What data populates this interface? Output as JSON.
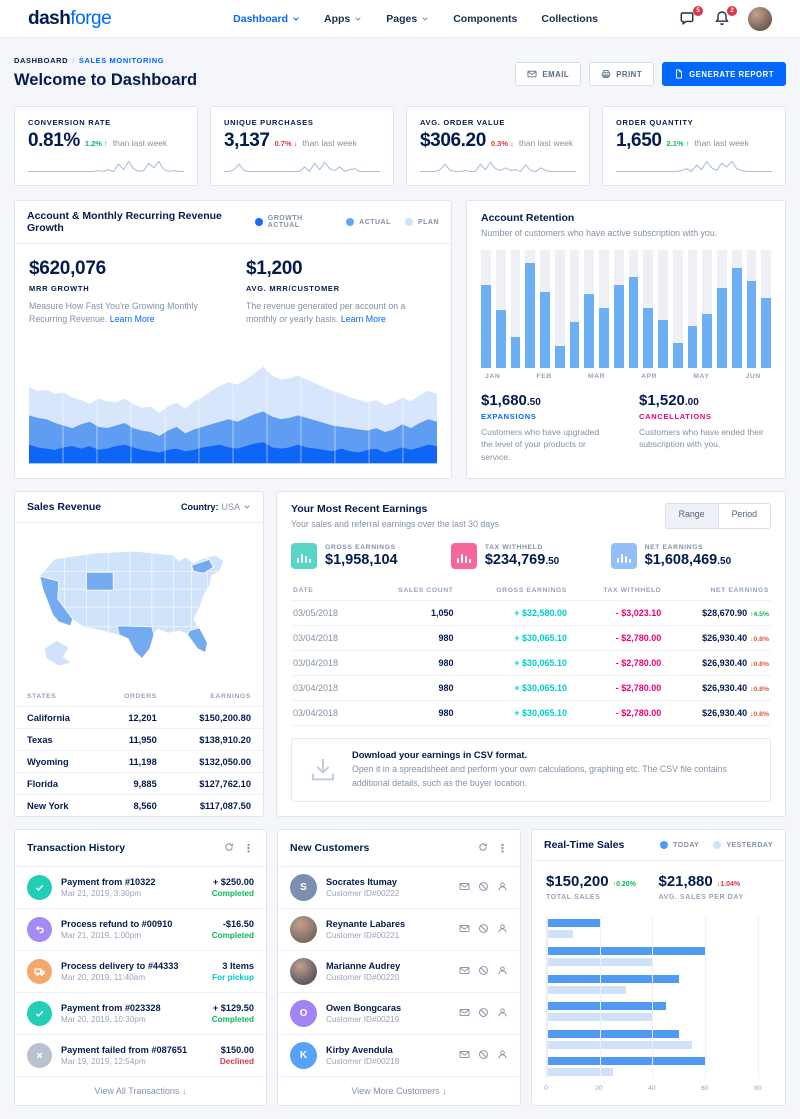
{
  "navbar": {
    "logo_bold": "dash",
    "logo_light": "forge",
    "items": [
      {
        "label": "Dashboard",
        "chevron": true,
        "active": true
      },
      {
        "label": "Apps",
        "chevron": true,
        "active": false
      },
      {
        "label": "Pages",
        "chevron": true,
        "active": false
      },
      {
        "label": "Components",
        "chevron": false,
        "active": false
      },
      {
        "label": "Collections",
        "chevron": false,
        "active": false
      }
    ],
    "chat_badge": "5",
    "bell_badge": "2"
  },
  "header": {
    "breadcrumb_1": "DASHBOARD",
    "breadcrumb_2": "SALES MONITORING",
    "title": "Welcome to Dashboard",
    "email_label": "EMAIL",
    "print_label": "PRINT",
    "report_label": "GENERATE REPORT"
  },
  "kpis": [
    {
      "label": "CONVERSION RATE",
      "value": "0.81%",
      "delta": "1.2%",
      "dir": "up",
      "suffix": "than last week",
      "spark": [
        17,
        17,
        17,
        17,
        17,
        17,
        17,
        17,
        17,
        17,
        17,
        17,
        17,
        17,
        16,
        17,
        15,
        17,
        9,
        15,
        6,
        14,
        17,
        16,
        8,
        13,
        6,
        15,
        17,
        16,
        17,
        17
      ]
    },
    {
      "label": "UNIQUE PURCHASES",
      "value": "3,137",
      "delta": "0.7%",
      "dir": "down",
      "suffix": "than last week",
      "spark": [
        17,
        17,
        15,
        9,
        16,
        17,
        17,
        17,
        17,
        17,
        17,
        17,
        17,
        17,
        17,
        17,
        12,
        17,
        8,
        15,
        7,
        14,
        16,
        12,
        17,
        15,
        14,
        17,
        17,
        17,
        17,
        17
      ]
    },
    {
      "label": "AVG. ORDER VALUE",
      "value": "$306.20",
      "delta": "0.3%",
      "dir": "down",
      "suffix": "than last week",
      "spark": [
        17,
        17,
        17,
        17,
        15,
        9,
        16,
        17,
        17,
        16,
        17,
        17,
        9,
        15,
        7,
        14,
        16,
        13,
        16,
        15,
        17,
        10,
        16,
        17,
        13,
        16,
        17,
        17,
        17,
        17,
        17,
        17
      ]
    },
    {
      "label": "ORDER QUANTITY",
      "value": "1,650",
      "delta": "2.1%",
      "dir": "up",
      "suffix": "than last week",
      "spark": [
        17,
        17,
        17,
        17,
        17,
        17,
        17,
        17,
        17,
        17,
        17,
        17,
        17,
        16,
        14,
        17,
        10,
        15,
        6,
        13,
        16,
        8,
        12,
        6,
        14,
        16,
        17,
        17,
        17,
        17,
        17,
        17
      ]
    }
  ],
  "mrr": {
    "title": "Account & Monthly Recurring Revenue Growth",
    "legend": [
      {
        "label": "GROWTH ACTUAL",
        "color": "#1a6ef5"
      },
      {
        "label": "ACTUAL",
        "color": "#66a4f4"
      },
      {
        "label": "PLAN",
        "color": "#cfe2fa"
      }
    ],
    "stats": [
      {
        "value": "$620,076",
        "label": "MRR GROWTH",
        "desc": "Measure How Fast You're Growing Monthly Recurring Revenue.",
        "link": "Learn More"
      },
      {
        "value": "$1,200",
        "label": "AVG. MRR/CUSTOMER",
        "desc": "The revenue generated per account on a monthly or yearly basis.",
        "link": "Learn More"
      }
    ],
    "series": {
      "plan": [
        60,
        57,
        58,
        55,
        56,
        52,
        50,
        47,
        51,
        49,
        48,
        51,
        47,
        44,
        45,
        40,
        45,
        48,
        43,
        49,
        52,
        57,
        61,
        64,
        62,
        66,
        71,
        76,
        69,
        66,
        67,
        69,
        66,
        63,
        60,
        57,
        55,
        52,
        50,
        48,
        50,
        46,
        48,
        52,
        49,
        54,
        57,
        55
      ],
      "actual": [
        38,
        36,
        35,
        32,
        30,
        28,
        31,
        33,
        29,
        28,
        30,
        32,
        28,
        26,
        25,
        22,
        26,
        29,
        24,
        27,
        29,
        31,
        33,
        35,
        33,
        36,
        39,
        41,
        37,
        35,
        36,
        38,
        36,
        34,
        32,
        30,
        29,
        28,
        27,
        26,
        28,
        25,
        27,
        31,
        28,
        32,
        35,
        33
      ],
      "growth": [
        15,
        13,
        12,
        11,
        13,
        14,
        12,
        14,
        11,
        12,
        14,
        15,
        13,
        11,
        10,
        9,
        11,
        12,
        10,
        11,
        13,
        14,
        15,
        13,
        12,
        14,
        16,
        17,
        13,
        12,
        13,
        15,
        13,
        12,
        11,
        10,
        12,
        10,
        9,
        11,
        12,
        9,
        11,
        13,
        11,
        13,
        15,
        14
      ]
    },
    "colors": {
      "plan": "#d7e6fb",
      "actual": "#5f9df3",
      "growth": "#0d66f5"
    }
  },
  "retention": {
    "title": "Account Retention",
    "subtitle": "Number of customers who have active subscription with you.",
    "bars": [
      70,
      49,
      26,
      89,
      64,
      19,
      39,
      63,
      51,
      70,
      77,
      51,
      41,
      21,
      36,
      46,
      68,
      85,
      74,
      59
    ],
    "months": [
      "JAN",
      "FEB",
      "MAR",
      "APR",
      "MAY",
      "JUN"
    ],
    "stats": [
      {
        "value": "$1,680",
        "cents": ".50",
        "label": "EXPANSIONS",
        "cls": "exp",
        "desc": "Customers who have upgraded the level of your products or service."
      },
      {
        "value": "$1,520",
        "cents": ".00",
        "label": "CANCELLATIONS",
        "cls": "can",
        "desc": "Customers who have ended their subscription with you."
      }
    ]
  },
  "sales_revenue": {
    "title": "Sales Revenue",
    "country_label": "Country:",
    "country_value": "USA",
    "headers": [
      "STATES",
      "ORDERS",
      "EARNINGS"
    ],
    "rows": [
      [
        "California",
        "12,201",
        "$150,200.80"
      ],
      [
        "Texas",
        "11,950",
        "$138,910.20"
      ],
      [
        "Wyoming",
        "11,198",
        "$132,050.00"
      ],
      [
        "Florida",
        "9,885",
        "$127,762.10"
      ],
      [
        "New York",
        "8,560",
        "$117,087.50"
      ]
    ]
  },
  "earnings": {
    "title": "Your Most Recent Earnings",
    "subtitle": "Your sales and referral earnings over the last 30 days",
    "toggle": [
      "Range",
      "Period"
    ],
    "cards": [
      {
        "label": "GROSS EARNINGS",
        "value": "$1,958,104",
        "cents": "",
        "color": "#59d4c6"
      },
      {
        "label": "TAX WITHHELD",
        "value": "$234,769",
        "cents": ".50",
        "color": "#f4679f"
      },
      {
        "label": "NET EARNINGS",
        "value": "$1,608,469",
        "cents": ".50",
        "color": "#94bef8"
      }
    ],
    "headers": [
      "DATE",
      "SALES COUNT",
      "GROSS EARNINGS",
      "TAX WITHHELD",
      "NET EARNINGS"
    ],
    "rows": [
      {
        "date": "03/05/2018",
        "count": "1,050",
        "gross": "+ $32,580.00",
        "tax": "- $3,023.10",
        "net": "$28,670.90",
        "delta": "4.5%",
        "dir": "up"
      },
      {
        "date": "03/04/2018",
        "count": "980",
        "gross": "+ $30,065.10",
        "tax": "- $2,780.00",
        "net": "$26,930.40",
        "delta": "0.8%",
        "dir": "down"
      },
      {
        "date": "03/04/2018",
        "count": "980",
        "gross": "+ $30,065.10",
        "tax": "- $2,780.00",
        "net": "$26,930.40",
        "delta": "0.8%",
        "dir": "down"
      },
      {
        "date": "03/04/2018",
        "count": "980",
        "gross": "+ $30,065.10",
        "tax": "- $2,780.00",
        "net": "$26,930.40",
        "delta": "0.8%",
        "dir": "down"
      },
      {
        "date": "03/04/2018",
        "count": "980",
        "gross": "+ $30,065.10",
        "tax": "- $2,780.00",
        "net": "$26,930.40",
        "delta": "0.8%",
        "dir": "down"
      }
    ],
    "csv_title": "Download your earnings in CSV format.",
    "csv_desc": "Open it in a spreadsheet and perform your own calculations, graphing etc. The CSV file contains additional details, such as the buyer location."
  },
  "transactions": {
    "title": "Transaction History",
    "rows": [
      {
        "icon": "check",
        "color": "#22ceb6",
        "title": "Payment from #10322",
        "date": "Mar 21, 2019, 3:30pm",
        "amount": "+ $250.00",
        "status": "Completed",
        "status_color": "#10b759"
      },
      {
        "icon": "undo",
        "color": "#a58bf2",
        "title": "Process refund to #00910",
        "date": "Mar 21, 2019, 1:00pm",
        "amount": "-$16.50",
        "status": "Completed",
        "status_color": "#10b759"
      },
      {
        "icon": "truck",
        "color": "#f3a86e",
        "title": "Process delivery to #44333",
        "date": "Mar 20, 2019, 11:40am",
        "amount": "3 Items",
        "status": "For pickup",
        "status_color": "#00c9cc"
      },
      {
        "icon": "check",
        "color": "#22ceb6",
        "title": "Payment from #023328",
        "date": "Mar 20, 2019, 10:30pm",
        "amount": "+ $129.50",
        "status": "Completed",
        "status_color": "#10b759"
      },
      {
        "icon": "close",
        "color": "#b9c2cf",
        "title": "Payment failed from #087651",
        "date": "Mar 19, 2019, 12:54pm",
        "amount": "$150.00",
        "status": "Declined",
        "status_color": "#dc3545"
      }
    ],
    "footer": "View All Transactions ↓"
  },
  "customers": {
    "title": "New Customers",
    "rows": [
      {
        "name": "Socrates Itumay",
        "id": "Customer ID#00222",
        "avatar": "initial",
        "text": "S",
        "color": "#7d8fb0"
      },
      {
        "name": "Reynante Labares",
        "id": "Customer ID#00221",
        "avatar": "photo",
        "text": "",
        "color": "#7a6a5f"
      },
      {
        "name": "Marianne Audrey",
        "id": "Customer ID#00220",
        "avatar": "photo",
        "text": "",
        "color": "#5d5661"
      },
      {
        "name": "Owen Bongcaras",
        "id": "Customer ID#00219",
        "avatar": "initial",
        "text": "O",
        "color": "#a283f5"
      },
      {
        "name": "Kirby Avendula",
        "id": "Customer ID#00218",
        "avatar": "initial",
        "text": "K",
        "color": "#55a2f8"
      }
    ],
    "footer": "View More Customers ↓"
  },
  "realtime": {
    "title": "Real-Time Sales",
    "legend": [
      {
        "label": "TODAY",
        "color": "#509af1"
      },
      {
        "label": "YESTERDAY",
        "color": "#cfe2fa"
      }
    ],
    "stats": [
      {
        "value": "$150,200",
        "delta": "0.20%",
        "dir": "up",
        "label": "TOTAL SALES"
      },
      {
        "value": "$21,880",
        "delta": "1.04%",
        "dir": "down",
        "label": "AVG. SALES PER DAY"
      }
    ],
    "chart": {
      "x_ticks": [
        0,
        20,
        40,
        60,
        80
      ],
      "x_max": 85,
      "pairs": [
        [
          20,
          10
        ],
        [
          60,
          40
        ],
        [
          50,
          30
        ],
        [
          45,
          40
        ],
        [
          50,
          55
        ],
        [
          60,
          25
        ]
      ]
    }
  }
}
